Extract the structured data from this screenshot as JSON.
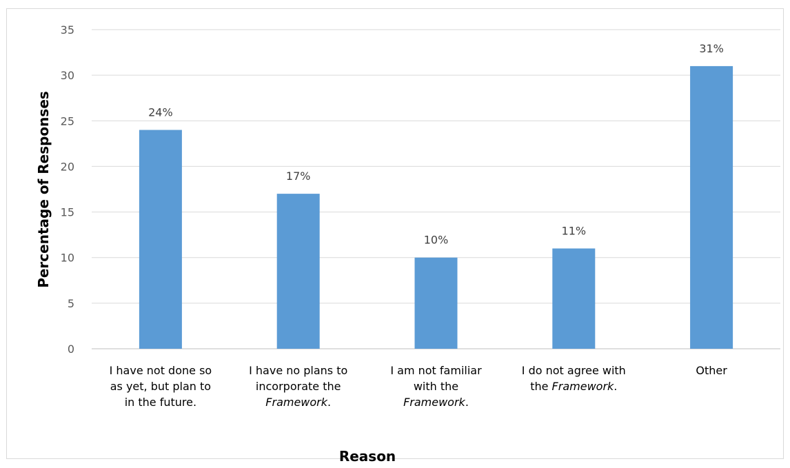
{
  "chart_data": {
    "type": "bar",
    "categories": [
      [
        {
          "text": "I have not done so"
        },
        {
          "text": "as yet, but plan to"
        },
        {
          "text": "in the future."
        }
      ],
      [
        {
          "text": "I have no plans to"
        },
        {
          "text": "incorporate the"
        },
        {
          "text": "Framework",
          "italic": true,
          "suffix": "."
        }
      ],
      [
        {
          "text": "I am not familiar"
        },
        {
          "text": "with the"
        },
        {
          "text": "Framework",
          "italic": true,
          "suffix": "."
        }
      ],
      [
        {
          "text": "I do not agree with"
        },
        {
          "text": "the ",
          "italic_part": "Framework",
          "suffix": "."
        }
      ],
      [
        {
          "text": "Other"
        }
      ]
    ],
    "values": [
      24,
      17,
      10,
      11,
      31
    ],
    "data_labels": [
      "24%",
      "17%",
      "10%",
      "11%",
      "31%"
    ],
    "xlabel": "Reason",
    "ylabel": "Percentage of Responses",
    "ylim": [
      0,
      35
    ],
    "yticks": [
      0,
      5,
      10,
      15,
      20,
      25,
      30,
      35
    ],
    "grid": true,
    "bar_color": "#5b9bd5"
  }
}
